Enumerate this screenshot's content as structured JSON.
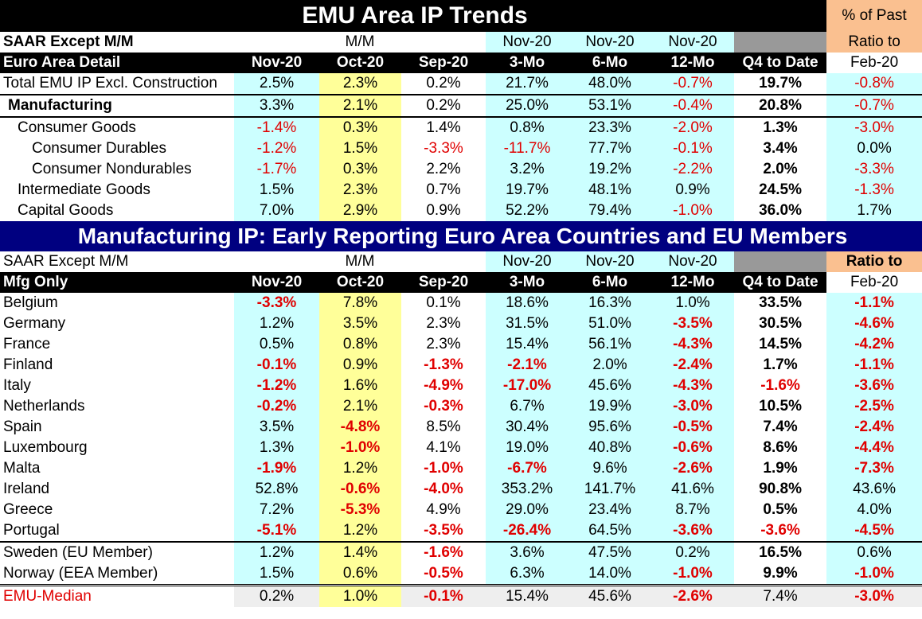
{
  "table1": {
    "title": "EMU Area IP Trends",
    "pct_past_label": "% of Past",
    "ratio_to_label": "Ratio to",
    "row_saar": "SAAR Except M/M",
    "mm_label": "M/M",
    "nov20_3": "Nov-20",
    "nov20_6": "Nov-20",
    "nov20_12": "Nov-20",
    "detail_label": "Euro Area Detail",
    "h_nov": "Nov-20",
    "h_oct": "Oct-20",
    "h_sep": "Sep-20",
    "h_3mo": "3-Mo",
    "h_6mo": "6-Mo",
    "h_12mo": "12-Mo",
    "h_q4": "Q4 to Date",
    "h_feb": "Feb-20",
    "rows": [
      {
        "label": "Total EMU IP Excl. Construction",
        "v": [
          "2.5%",
          "2.3%",
          "0.2%",
          "21.7%",
          "48.0%",
          "-0.7%",
          "19.7%",
          "-0.8%"
        ]
      },
      {
        "label": "Manufacturing",
        "v": [
          "3.3%",
          "2.1%",
          "0.2%",
          "25.0%",
          "53.1%",
          "-0.4%",
          "20.8%",
          "-0.7%"
        ]
      },
      {
        "label": "Consumer Goods",
        "v": [
          "-1.4%",
          "0.3%",
          "1.4%",
          "0.8%",
          "23.3%",
          "-2.0%",
          "1.3%",
          "-3.0%"
        ]
      },
      {
        "label": "Consumer Durables",
        "v": [
          "-1.2%",
          "1.5%",
          "-3.3%",
          "-11.7%",
          "77.7%",
          "-0.1%",
          "3.4%",
          "0.0%"
        ]
      },
      {
        "label": "Consumer Nondurables",
        "v": [
          "-1.7%",
          "0.3%",
          "2.2%",
          "3.2%",
          "19.2%",
          "-2.2%",
          "2.0%",
          "-3.3%"
        ]
      },
      {
        "label": "Intermediate Goods",
        "v": [
          "1.5%",
          "2.3%",
          "0.7%",
          "19.7%",
          "48.1%",
          "0.9%",
          "24.5%",
          "-1.3%"
        ]
      },
      {
        "label": "Capital Goods",
        "v": [
          "7.0%",
          "2.9%",
          "0.9%",
          "52.2%",
          "79.4%",
          "-1.0%",
          "36.0%",
          "1.7%"
        ]
      }
    ]
  },
  "table2": {
    "title": "Manufacturing IP: Early Reporting Euro Area Countries and EU Members",
    "row_saar": "SAAR Except M/M",
    "mm_label": "M/M",
    "nov20_3": "Nov-20",
    "nov20_6": "Nov-20",
    "nov20_12": "Nov-20",
    "ratio_to_label": "Ratio to",
    "detail_label": "Mfg Only",
    "h_nov": "Nov-20",
    "h_oct": "Oct-20",
    "h_sep": "Sep-20",
    "h_3mo": "3-Mo",
    "h_6mo": "6-Mo",
    "h_12mo": "12-Mo",
    "h_q4": "Q4 to Date",
    "h_feb": "Feb-20",
    "rows": [
      {
        "label": "Belgium",
        "v": [
          "-3.3%",
          "7.8%",
          "0.1%",
          "18.6%",
          "16.3%",
          "1.0%",
          "33.5%",
          "-1.1%"
        ]
      },
      {
        "label": "Germany",
        "v": [
          "1.2%",
          "3.5%",
          "2.3%",
          "31.5%",
          "51.0%",
          "-3.5%",
          "30.5%",
          "-4.6%"
        ]
      },
      {
        "label": "France",
        "v": [
          "0.5%",
          "0.8%",
          "2.3%",
          "15.4%",
          "56.1%",
          "-4.3%",
          "14.5%",
          "-4.2%"
        ]
      },
      {
        "label": "Finland",
        "v": [
          "-0.1%",
          "0.9%",
          "-1.3%",
          "-2.1%",
          "2.0%",
          "-2.4%",
          "1.7%",
          "-1.1%"
        ]
      },
      {
        "label": "Italy",
        "v": [
          "-1.2%",
          "1.6%",
          "-4.9%",
          "-17.0%",
          "45.6%",
          "-4.3%",
          "-1.6%",
          "-3.6%"
        ]
      },
      {
        "label": "Netherlands",
        "v": [
          "-0.2%",
          "2.1%",
          "-0.3%",
          "6.7%",
          "19.9%",
          "-3.0%",
          "10.5%",
          "-2.5%"
        ]
      },
      {
        "label": "Spain",
        "v": [
          "3.5%",
          "-4.8%",
          "8.5%",
          "30.4%",
          "95.6%",
          "-0.5%",
          "7.4%",
          "-2.4%"
        ]
      },
      {
        "label": "Luxembourg",
        "v": [
          "1.3%",
          "-1.0%",
          "4.1%",
          "19.0%",
          "40.8%",
          "-0.6%",
          "8.6%",
          "-4.4%"
        ]
      },
      {
        "label": "Malta",
        "v": [
          "-1.9%",
          "1.2%",
          "-1.0%",
          "-6.7%",
          "9.6%",
          "-2.6%",
          "1.9%",
          "-7.3%"
        ]
      },
      {
        "label": "Ireland",
        "v": [
          "52.8%",
          "-0.6%",
          "-4.0%",
          "353.2%",
          "141.7%",
          "41.6%",
          "90.8%",
          "43.6%"
        ]
      },
      {
        "label": "Greece",
        "v": [
          "7.2%",
          "-5.3%",
          "4.9%",
          "29.0%",
          "23.4%",
          "8.7%",
          "0.5%",
          "4.0%"
        ]
      },
      {
        "label": "Portugal",
        "v": [
          "-5.1%",
          "1.2%",
          "-3.5%",
          "-26.4%",
          "64.5%",
          "-3.6%",
          "-3.6%",
          "-4.5%"
        ]
      },
      {
        "label": "Sweden (EU Member)",
        "v": [
          "1.2%",
          "1.4%",
          "-1.6%",
          "3.6%",
          "47.5%",
          "0.2%",
          "16.5%",
          "0.6%"
        ]
      },
      {
        "label": "Norway (EEA Member)",
        "v": [
          "1.5%",
          "0.6%",
          "-0.5%",
          "6.3%",
          "14.0%",
          "-1.0%",
          "9.9%",
          "-1.0%"
        ]
      }
    ],
    "median": {
      "label": "EMU-Median",
      "v": [
        "0.2%",
        "1.0%",
        "-0.1%",
        "15.4%",
        "45.6%",
        "-2.6%",
        "7.4%",
        "-3.0%"
      ]
    }
  }
}
